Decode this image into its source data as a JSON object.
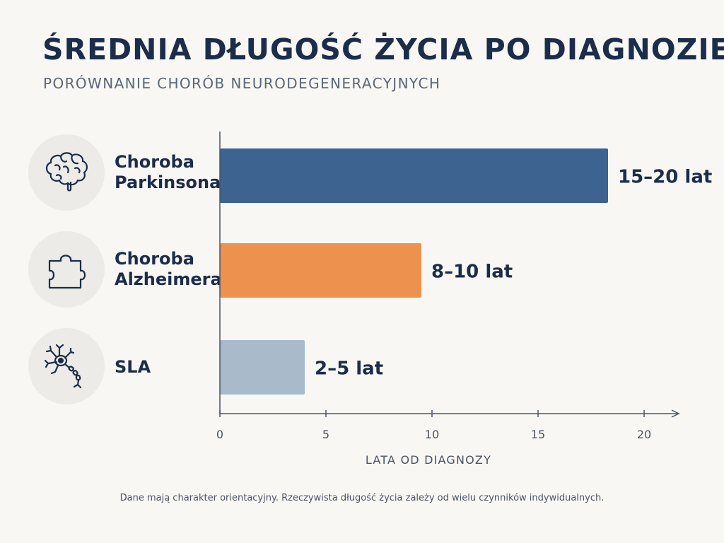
{
  "header": {
    "title": "ŚREDNIA DŁUGOŚĆ ŻYCIA PO DIAGNOZIE",
    "subtitle": "PORÓWNANIE CHORÓB NEURODEGENERACYJNYCH"
  },
  "rows": [
    {
      "label_line1": "Choroba",
      "label_line2": "Parkinsona",
      "icon": "brain-icon"
    },
    {
      "label_line1": "Choroba",
      "label_line2": "Alzheimera",
      "icon": "puzzle-piece-icon"
    },
    {
      "label_line1": "SLA",
      "label_line2": "",
      "icon": "neuron-icon"
    }
  ],
  "chart_data": {
    "type": "bar",
    "orientation": "horizontal",
    "categories": [
      "Choroba Parkinsona",
      "Choroba Alzheimera",
      "SLA"
    ],
    "values": [
      18.3,
      9.5,
      4
    ],
    "data_labels": [
      "15–20 lat",
      "8–10 lat",
      "2–5 lat"
    ],
    "colors": [
      "#3d6490",
      "#ec924e",
      "#a9bacb"
    ],
    "xlabel": "LATA OD DIAGNOZY",
    "xlim": [
      0,
      21.5
    ],
    "xticks": [
      0,
      5,
      10,
      15,
      20
    ],
    "grid": false,
    "legend": "none"
  },
  "footnote": "Dane mają charakter orientacyjny. Rzeczywista długość życia zależy od wielu czynników indywidualnych."
}
